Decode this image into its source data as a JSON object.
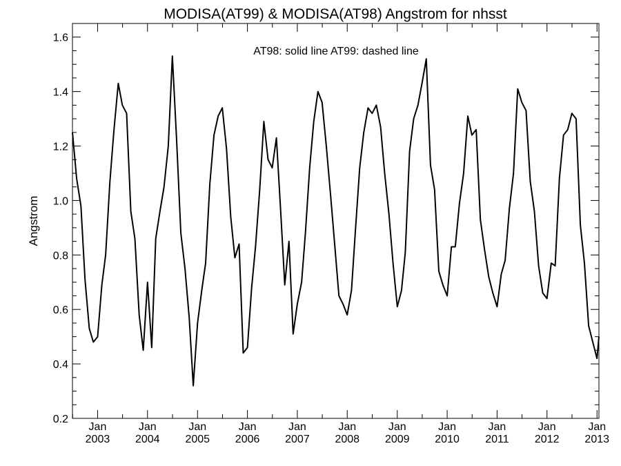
{
  "chart_data": {
    "type": "line",
    "title": "MODISA(AT99) & MODISA(AT98)  Angstrom for nhsst",
    "xlabel": "",
    "ylabel": "Angstrom",
    "annotation": "AT98: solid line   AT99: dashed line",
    "ylim": [
      0.2,
      1.65
    ],
    "xlim": [
      "2002-07-01",
      "2013-01-15"
    ],
    "y_ticks": [
      "0.2",
      "0.4",
      "0.6",
      "0.8",
      "1.0",
      "1.2",
      "1.4",
      "1.6"
    ],
    "x_ticks": [
      {
        "month": "Jan",
        "year": "2003",
        "date": "2003-01-01"
      },
      {
        "month": "Jan",
        "year": "2004",
        "date": "2004-01-01"
      },
      {
        "month": "Jan",
        "year": "2005",
        "date": "2005-01-01"
      },
      {
        "month": "Jan",
        "year": "2006",
        "date": "2006-01-01"
      },
      {
        "month": "Jan",
        "year": "2007",
        "date": "2007-01-01"
      },
      {
        "month": "Jan",
        "year": "2008",
        "date": "2008-01-01"
      },
      {
        "month": "Jan",
        "year": "2009",
        "date": "2009-01-01"
      },
      {
        "month": "Jan",
        "year": "2010",
        "date": "2010-01-01"
      },
      {
        "month": "Jan",
        "year": "2011",
        "date": "2011-01-01"
      },
      {
        "month": "Jan",
        "year": "2012",
        "date": "2012-01-01"
      },
      {
        "month": "Jan",
        "year": "2013",
        "date": "2013-01-01"
      }
    ],
    "grid": false,
    "series": [
      {
        "style": "solid",
        "color": "#000000",
        "points": [
          [
            "2002-07-01",
            1.25
          ],
          [
            "2002-08-01",
            1.08
          ],
          [
            "2002-09-01",
            0.98
          ],
          [
            "2002-10-01",
            0.71
          ],
          [
            "2002-11-01",
            0.53
          ],
          [
            "2002-12-01",
            0.48
          ],
          [
            "2003-01-01",
            0.5
          ],
          [
            "2003-02-01",
            0.69
          ],
          [
            "2003-03-01",
            0.8
          ],
          [
            "2003-04-01",
            1.07
          ],
          [
            "2003-05-01",
            1.26
          ],
          [
            "2003-06-01",
            1.43
          ],
          [
            "2003-07-01",
            1.35
          ],
          [
            "2003-08-01",
            1.32
          ],
          [
            "2003-09-01",
            0.96
          ],
          [
            "2003-10-01",
            0.86
          ],
          [
            "2003-11-01",
            0.58
          ],
          [
            "2003-12-01",
            0.45
          ],
          [
            "2004-01-01",
            0.7
          ],
          [
            "2004-02-01",
            0.46
          ],
          [
            "2004-03-01",
            0.86
          ],
          [
            "2004-04-01",
            0.96
          ],
          [
            "2004-05-01",
            1.05
          ],
          [
            "2004-06-01",
            1.2
          ],
          [
            "2004-07-01",
            1.53
          ],
          [
            "2004-08-01",
            1.22
          ],
          [
            "2004-09-01",
            0.88
          ],
          [
            "2004-10-01",
            0.75
          ],
          [
            "2004-11-01",
            0.57
          ],
          [
            "2004-12-01",
            0.32
          ],
          [
            "2005-01-01",
            0.55
          ],
          [
            "2005-02-01",
            0.67
          ],
          [
            "2005-03-01",
            0.77
          ],
          [
            "2005-04-01",
            1.06
          ],
          [
            "2005-05-01",
            1.24
          ],
          [
            "2005-06-01",
            1.31
          ],
          [
            "2005-07-01",
            1.34
          ],
          [
            "2005-08-01",
            1.19
          ],
          [
            "2005-09-01",
            0.94
          ],
          [
            "2005-10-01",
            0.79
          ],
          [
            "2005-11-01",
            0.84
          ],
          [
            "2005-12-01",
            0.44
          ],
          [
            "2006-01-01",
            0.46
          ],
          [
            "2006-02-01",
            0.68
          ],
          [
            "2006-03-01",
            0.83
          ],
          [
            "2006-04-01",
            1.04
          ],
          [
            "2006-05-01",
            1.29
          ],
          [
            "2006-06-01",
            1.15
          ],
          [
            "2006-07-01",
            1.12
          ],
          [
            "2006-08-01",
            1.23
          ],
          [
            "2006-09-01",
            0.96
          ],
          [
            "2006-10-01",
            0.69
          ],
          [
            "2006-11-01",
            0.85
          ],
          [
            "2006-12-01",
            0.51
          ],
          [
            "2007-01-01",
            0.62
          ],
          [
            "2007-02-01",
            0.7
          ],
          [
            "2007-03-01",
            0.88
          ],
          [
            "2007-04-01",
            1.12
          ],
          [
            "2007-05-01",
            1.29
          ],
          [
            "2007-06-01",
            1.4
          ],
          [
            "2007-07-01",
            1.36
          ],
          [
            "2007-08-01",
            1.2
          ],
          [
            "2007-09-01",
            1.02
          ],
          [
            "2007-10-01",
            0.84
          ],
          [
            "2007-11-01",
            0.65
          ],
          [
            "2007-12-01",
            0.62
          ],
          [
            "2008-01-01",
            0.58
          ],
          [
            "2008-02-01",
            0.67
          ],
          [
            "2008-03-01",
            0.89
          ],
          [
            "2008-04-01",
            1.12
          ],
          [
            "2008-05-01",
            1.25
          ],
          [
            "2008-06-01",
            1.34
          ],
          [
            "2008-07-01",
            1.32
          ],
          [
            "2008-08-01",
            1.35
          ],
          [
            "2008-09-01",
            1.27
          ],
          [
            "2008-10-01",
            1.1
          ],
          [
            "2008-11-01",
            0.95
          ],
          [
            "2008-12-01",
            0.77
          ],
          [
            "2009-01-01",
            0.61
          ],
          [
            "2009-02-01",
            0.67
          ],
          [
            "2009-03-01",
            0.81
          ],
          [
            "2009-04-01",
            1.18
          ],
          [
            "2009-05-01",
            1.3
          ],
          [
            "2009-06-01",
            1.35
          ],
          [
            "2009-07-01",
            1.43
          ],
          [
            "2009-08-01",
            1.52
          ],
          [
            "2009-09-01",
            1.13
          ],
          [
            "2009-10-01",
            1.04
          ],
          [
            "2009-11-01",
            0.74
          ],
          [
            "2009-12-01",
            0.69
          ],
          [
            "2010-01-01",
            0.65
          ],
          [
            "2010-02-01",
            0.83
          ],
          [
            "2010-03-01",
            0.83
          ],
          [
            "2010-04-01",
            0.99
          ],
          [
            "2010-05-01",
            1.1
          ],
          [
            "2010-06-01",
            1.31
          ],
          [
            "2010-07-01",
            1.24
          ],
          [
            "2010-08-01",
            1.26
          ],
          [
            "2010-09-01",
            0.93
          ],
          [
            "2010-10-01",
            0.82
          ],
          [
            "2010-11-01",
            0.72
          ],
          [
            "2010-12-01",
            0.66
          ],
          [
            "2011-01-01",
            0.61
          ],
          [
            "2011-02-01",
            0.73
          ],
          [
            "2011-03-01",
            0.78
          ],
          [
            "2011-04-01",
            0.97
          ],
          [
            "2011-05-01",
            1.1
          ],
          [
            "2011-06-01",
            1.41
          ],
          [
            "2011-07-01",
            1.36
          ],
          [
            "2011-08-01",
            1.33
          ],
          [
            "2011-09-01",
            1.07
          ],
          [
            "2011-10-01",
            0.96
          ],
          [
            "2011-11-01",
            0.76
          ],
          [
            "2011-12-01",
            0.66
          ],
          [
            "2012-01-01",
            0.64
          ],
          [
            "2012-02-01",
            0.77
          ],
          [
            "2012-03-01",
            0.76
          ],
          [
            "2012-04-01",
            1.08
          ],
          [
            "2012-05-01",
            1.24
          ],
          [
            "2012-06-01",
            1.26
          ],
          [
            "2012-07-01",
            1.32
          ],
          [
            "2012-08-01",
            1.3
          ],
          [
            "2012-09-01",
            0.91
          ],
          [
            "2012-10-01",
            0.77
          ],
          [
            "2012-11-01",
            0.54
          ],
          [
            "2012-12-01",
            0.48
          ],
          [
            "2013-01-01",
            0.42
          ],
          [
            "2013-01-15",
            0.5
          ]
        ]
      }
    ]
  }
}
